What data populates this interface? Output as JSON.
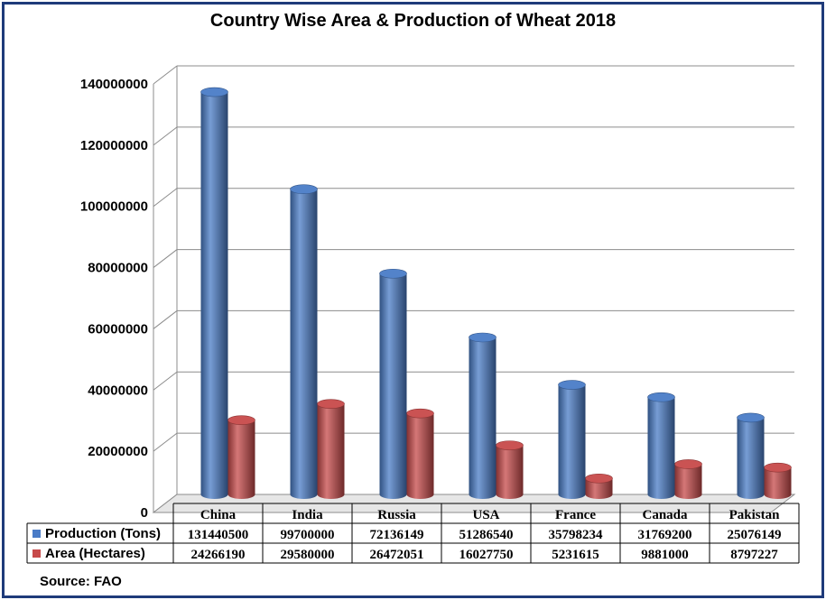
{
  "chart_data": {
    "type": "bar",
    "title": "Country Wise Area & Production of Wheat 2018",
    "categories": [
      "China",
      "India",
      "Russia",
      "USA",
      "France",
      "Canada",
      "Pakistan"
    ],
    "series": [
      {
        "name": "Production (Tons)",
        "color": "#4a7cc7",
        "values": [
          131440500,
          99700000,
          72136149,
          51286540,
          35798234,
          31769200,
          25076149
        ],
        "labels": [
          "131440500",
          "99700000",
          "72136149",
          "51286540",
          "35798234",
          "31769200",
          "25076149"
        ]
      },
      {
        "name": "Area (Hectares)",
        "color": "#c74a4a",
        "values": [
          24266190,
          29580000,
          26472051,
          16027750,
          5231615,
          9881000,
          8797227
        ],
        "labels": [
          "24266190",
          "29580000",
          "26472051",
          "16027750",
          "5231615",
          "9881000",
          "8797227"
        ]
      }
    ],
    "yticks": [
      "0",
      "20000000",
      "40000000",
      "60000000",
      "80000000",
      "100000000",
      "120000000",
      "140000000"
    ],
    "ylim": [
      0,
      140000000
    ],
    "grid": true,
    "legend": "data-table",
    "chart_style": "3d-cylinder"
  },
  "source": "Source: FAO"
}
